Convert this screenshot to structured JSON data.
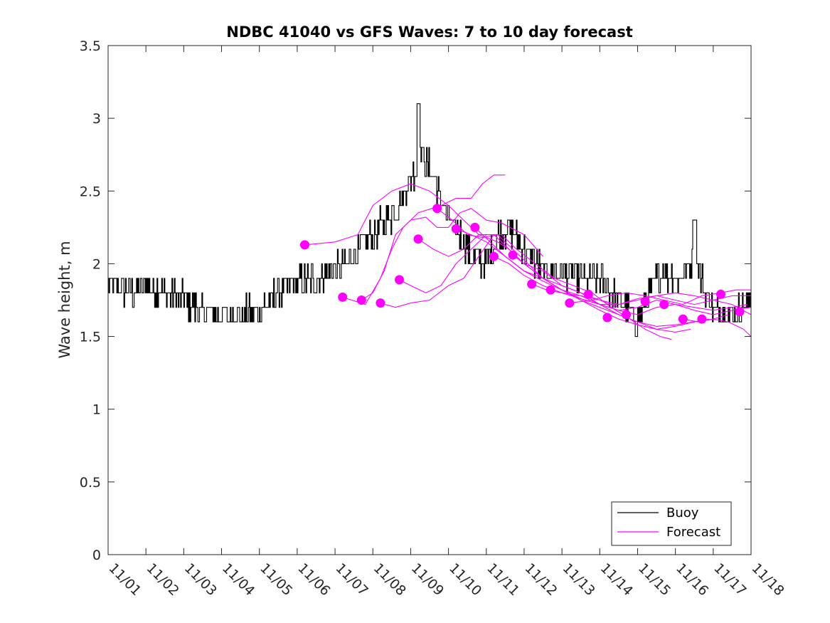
{
  "chart_data": {
    "type": "line",
    "title": "NDBC 41040 vs GFS Waves: 7 to 10 day forecast",
    "xlabel": "",
    "ylabel": "Wave height, m",
    "xlim": [
      0,
      17
    ],
    "ylim": [
      0,
      3.5
    ],
    "x_ticks": [
      "11/01",
      "11/02",
      "11/03",
      "11/04",
      "11/05",
      "11/06",
      "11/07",
      "11/08",
      "11/09",
      "11/10",
      "11/11",
      "11/12",
      "11/13",
      "11/14",
      "11/15",
      "11/16",
      "11/17",
      "11/18"
    ],
    "y_ticks": [
      0,
      0.5,
      1,
      1.5,
      2,
      2.5,
      3,
      3.5
    ],
    "y_tick_labels": [
      "0",
      "0.5",
      "1",
      "1.5",
      "2",
      "2.5",
      "3",
      "3.5"
    ],
    "legend": {
      "position": "bottom-right",
      "entries": [
        {
          "label": "Buoy",
          "color": "#000000"
        },
        {
          "label": "Forecast",
          "color": "#ff00ff"
        }
      ]
    },
    "colors": {
      "buoy": "#000000",
      "forecast": "#ff00ff",
      "axis": "#262626"
    },
    "buoy_anchors": [
      [
        0.0,
        1.85
      ],
      [
        0.5,
        1.8
      ],
      [
        1.0,
        1.85
      ],
      [
        1.5,
        1.8
      ],
      [
        2.0,
        1.75
      ],
      [
        2.4,
        1.68
      ],
      [
        3.0,
        1.65
      ],
      [
        3.5,
        1.65
      ],
      [
        4.0,
        1.68
      ],
      [
        4.4,
        1.78
      ],
      [
        5.0,
        1.88
      ],
      [
        5.5,
        1.9
      ],
      [
        6.0,
        1.95
      ],
      [
        6.5,
        2.05
      ],
      [
        7.0,
        2.2
      ],
      [
        7.3,
        2.3
      ],
      [
        7.6,
        2.35
      ],
      [
        8.0,
        2.6
      ],
      [
        8.3,
        2.75
      ],
      [
        8.6,
        2.6
      ],
      [
        9.0,
        2.3
      ],
      [
        9.3,
        2.2
      ],
      [
        9.6,
        2.05
      ],
      [
        10.0,
        2.0
      ],
      [
        10.3,
        2.2
      ],
      [
        10.6,
        2.25
      ],
      [
        11.0,
        2.1
      ],
      [
        11.5,
        1.95
      ],
      [
        12.0,
        1.95
      ],
      [
        12.5,
        1.9
      ],
      [
        13.0,
        1.9
      ],
      [
        13.5,
        1.75
      ],
      [
        14.0,
        1.6
      ],
      [
        14.3,
        1.8
      ],
      [
        14.6,
        1.95
      ],
      [
        15.0,
        1.9
      ],
      [
        15.3,
        1.95
      ],
      [
        15.5,
        2.05
      ],
      [
        15.8,
        1.8
      ],
      [
        16.0,
        1.7
      ],
      [
        16.5,
        1.65
      ],
      [
        17.0,
        1.75
      ]
    ],
    "buoy_noise_amplitude": 0.1,
    "buoy_samples_per_day": 48,
    "forecast_series": [
      {
        "name": "run-1",
        "points": [
          [
            5.2,
            2.13
          ],
          [
            6.0,
            2.15
          ],
          [
            6.6,
            2.2
          ],
          [
            7.0,
            2.4
          ],
          [
            7.5,
            2.5
          ],
          [
            8.0,
            2.55
          ],
          [
            8.5,
            2.5
          ],
          [
            9.0,
            2.4
          ],
          [
            9.4,
            2.3
          ],
          [
            9.8,
            2.2
          ],
          [
            10.3,
            2.15
          ],
          [
            10.6,
            2.1
          ]
        ]
      },
      {
        "name": "run-2",
        "points": [
          [
            6.2,
            1.77
          ],
          [
            6.8,
            1.72
          ],
          [
            7.2,
            1.9
          ],
          [
            7.5,
            2.1
          ],
          [
            7.8,
            2.25
          ],
          [
            8.2,
            2.35
          ],
          [
            8.8,
            2.4
          ],
          [
            9.2,
            2.45
          ],
          [
            9.6,
            2.45
          ],
          [
            9.9,
            2.55
          ],
          [
            10.2,
            2.61
          ],
          [
            10.5,
            2.61
          ]
        ]
      },
      {
        "name": "run-3",
        "points": [
          [
            6.7,
            1.75
          ],
          [
            7.0,
            1.8
          ],
          [
            7.3,
            1.95
          ],
          [
            7.6,
            2.2
          ],
          [
            8.0,
            2.3
          ],
          [
            8.4,
            2.32
          ],
          [
            8.7,
            2.25
          ],
          [
            9.0,
            2.25
          ],
          [
            9.3,
            2.35
          ],
          [
            9.6,
            2.38
          ],
          [
            10.0,
            2.3
          ],
          [
            10.4,
            2.28
          ],
          [
            11.0,
            2.2
          ],
          [
            11.5,
            2.05
          ]
        ]
      },
      {
        "name": "run-4",
        "points": [
          [
            7.2,
            1.73
          ],
          [
            7.6,
            1.7
          ],
          [
            8.0,
            1.73
          ],
          [
            8.5,
            1.75
          ],
          [
            9.0,
            1.85
          ],
          [
            9.4,
            1.9
          ],
          [
            9.8,
            2.05
          ],
          [
            10.2,
            2.2
          ],
          [
            10.6,
            2.1
          ],
          [
            11.0,
            2.0
          ],
          [
            11.5,
            1.95
          ],
          [
            12.0,
            1.85
          ],
          [
            12.5,
            1.8
          ],
          [
            13.0,
            1.75
          ],
          [
            13.5,
            1.7
          ]
        ]
      },
      {
        "name": "run-5",
        "points": [
          [
            7.7,
            1.89
          ],
          [
            8.0,
            1.85
          ],
          [
            8.4,
            1.8
          ],
          [
            8.8,
            1.85
          ],
          [
            9.2,
            2.0
          ],
          [
            9.6,
            2.1
          ],
          [
            10.0,
            2.2
          ],
          [
            10.4,
            2.2
          ],
          [
            10.8,
            2.1
          ],
          [
            11.3,
            2.0
          ],
          [
            11.8,
            1.9
          ],
          [
            12.3,
            1.85
          ],
          [
            12.8,
            1.8
          ],
          [
            13.3,
            1.7
          ],
          [
            13.8,
            1.62
          ],
          [
            14.2,
            1.55
          ],
          [
            14.6,
            1.5
          ],
          [
            14.9,
            1.48
          ]
        ]
      },
      {
        "name": "run-6",
        "points": [
          [
            8.2,
            2.17
          ],
          [
            8.6,
            2.1
          ],
          [
            9.0,
            2.05
          ],
          [
            9.4,
            2.1
          ],
          [
            9.8,
            2.2
          ],
          [
            10.2,
            2.2
          ],
          [
            10.6,
            2.1
          ],
          [
            11.0,
            2.0
          ],
          [
            11.5,
            1.9
          ],
          [
            12.0,
            1.82
          ],
          [
            12.5,
            1.75
          ],
          [
            13.0,
            1.7
          ],
          [
            13.5,
            1.65
          ],
          [
            14.0,
            1.6
          ],
          [
            14.5,
            1.55
          ],
          [
            15.0,
            1.53
          ],
          [
            15.4,
            1.55
          ]
        ]
      },
      {
        "name": "run-7",
        "points": [
          [
            8.7,
            2.38
          ],
          [
            9.1,
            2.3
          ],
          [
            9.5,
            2.2
          ],
          [
            9.9,
            2.18
          ],
          [
            10.3,
            2.2
          ],
          [
            10.7,
            2.1
          ],
          [
            11.1,
            2.0
          ],
          [
            11.5,
            1.9
          ],
          [
            12.0,
            1.82
          ],
          [
            12.5,
            1.78
          ],
          [
            13.0,
            1.72
          ],
          [
            13.5,
            1.65
          ],
          [
            14.0,
            1.6
          ],
          [
            14.5,
            1.57
          ],
          [
            15.0,
            1.58
          ],
          [
            15.5,
            1.6
          ],
          [
            15.9,
            1.62
          ]
        ]
      },
      {
        "name": "run-8",
        "points": [
          [
            9.2,
            2.24
          ],
          [
            9.6,
            2.2
          ],
          [
            10.0,
            2.15
          ],
          [
            10.5,
            2.05
          ],
          [
            11.0,
            1.95
          ],
          [
            11.5,
            1.88
          ],
          [
            12.0,
            1.82
          ],
          [
            12.5,
            1.75
          ],
          [
            13.0,
            1.68
          ],
          [
            13.5,
            1.62
          ],
          [
            14.0,
            1.58
          ],
          [
            14.5,
            1.55
          ],
          [
            15.0,
            1.57
          ],
          [
            15.5,
            1.6
          ],
          [
            16.0,
            1.62
          ],
          [
            16.4,
            1.65
          ]
        ]
      },
      {
        "name": "run-9",
        "points": [
          [
            9.7,
            2.25
          ],
          [
            10.1,
            2.15
          ],
          [
            10.5,
            2.05
          ],
          [
            11.0,
            1.95
          ],
          [
            11.5,
            1.9
          ],
          [
            12.0,
            1.85
          ],
          [
            12.5,
            1.8
          ],
          [
            13.0,
            1.72
          ],
          [
            13.5,
            1.68
          ],
          [
            14.0,
            1.65
          ],
          [
            14.5,
            1.7
          ],
          [
            15.0,
            1.72
          ],
          [
            15.5,
            1.7
          ],
          [
            16.0,
            1.68
          ],
          [
            16.5,
            1.7
          ],
          [
            16.9,
            1.72
          ]
        ]
      },
      {
        "name": "run-10",
        "points": [
          [
            10.2,
            2.05
          ],
          [
            10.6,
            2.0
          ],
          [
            11.0,
            1.92
          ],
          [
            11.5,
            1.85
          ],
          [
            12.0,
            1.8
          ],
          [
            12.5,
            1.76
          ],
          [
            13.0,
            1.72
          ],
          [
            13.5,
            1.68
          ],
          [
            14.0,
            1.7
          ],
          [
            14.5,
            1.75
          ],
          [
            15.0,
            1.72
          ],
          [
            15.5,
            1.68
          ],
          [
            16.0,
            1.65
          ],
          [
            16.5,
            1.68
          ],
          [
            17.0,
            1.7
          ]
        ]
      },
      {
        "name": "run-11",
        "points": [
          [
            10.7,
            2.06
          ],
          [
            11.1,
            1.98
          ],
          [
            11.5,
            1.9
          ],
          [
            12.0,
            1.82
          ],
          [
            12.5,
            1.76
          ],
          [
            13.0,
            1.72
          ],
          [
            13.5,
            1.72
          ],
          [
            14.0,
            1.76
          ],
          [
            14.5,
            1.78
          ],
          [
            15.0,
            1.75
          ],
          [
            15.5,
            1.72
          ],
          [
            16.0,
            1.75
          ],
          [
            16.5,
            1.78
          ],
          [
            17.0,
            1.78
          ]
        ]
      },
      {
        "name": "run-12",
        "points": [
          [
            11.2,
            1.86
          ],
          [
            11.6,
            1.82
          ],
          [
            12.0,
            1.8
          ],
          [
            12.5,
            1.78
          ],
          [
            13.0,
            1.75
          ],
          [
            13.5,
            1.72
          ],
          [
            14.0,
            1.75
          ],
          [
            14.5,
            1.78
          ],
          [
            15.0,
            1.8
          ],
          [
            15.5,
            1.78
          ],
          [
            16.0,
            1.75
          ],
          [
            16.5,
            1.72
          ],
          [
            17.0,
            1.65
          ]
        ]
      },
      {
        "name": "run-13",
        "points": [
          [
            12.2,
            1.73
          ],
          [
            12.8,
            1.75
          ],
          [
            13.2,
            1.78
          ],
          [
            13.7,
            1.8
          ],
          [
            14.2,
            1.78
          ],
          [
            14.7,
            1.75
          ],
          [
            15.2,
            1.72
          ],
          [
            15.7,
            1.78
          ],
          [
            16.2,
            1.8
          ],
          [
            16.6,
            1.82
          ],
          [
            17.0,
            1.82
          ]
        ]
      },
      {
        "name": "run-14",
        "points": [
          [
            15.2,
            1.62
          ],
          [
            15.6,
            1.6
          ],
          [
            16.0,
            1.62
          ],
          [
            16.4,
            1.6
          ],
          [
            16.8,
            1.55
          ],
          [
            17.0,
            1.5
          ]
        ]
      }
    ],
    "forecast_markers": [
      [
        5.2,
        2.13
      ],
      [
        6.2,
        1.77
      ],
      [
        6.7,
        1.75
      ],
      [
        7.2,
        1.73
      ],
      [
        7.7,
        1.89
      ],
      [
        8.2,
        2.17
      ],
      [
        8.7,
        2.38
      ],
      [
        9.2,
        2.24
      ],
      [
        9.7,
        2.25
      ],
      [
        10.2,
        2.05
      ],
      [
        10.7,
        2.06
      ],
      [
        11.2,
        1.86
      ],
      [
        11.7,
        1.82
      ],
      [
        12.2,
        1.73
      ],
      [
        12.7,
        1.79
      ],
      [
        13.2,
        1.63
      ],
      [
        13.7,
        1.65
      ],
      [
        14.2,
        1.74
      ],
      [
        14.7,
        1.72
      ],
      [
        15.2,
        1.62
      ],
      [
        15.7,
        1.62
      ],
      [
        16.2,
        1.79
      ],
      [
        16.7,
        1.67
      ]
    ]
  }
}
